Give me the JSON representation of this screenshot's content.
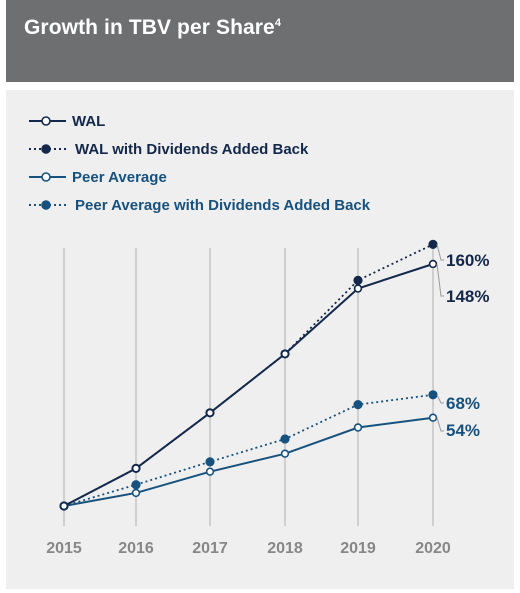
{
  "header": {
    "title": "Growth in TBV per Share",
    "footnote": "4"
  },
  "chart_data": {
    "type": "line",
    "title": "Growth in TBV per Share",
    "x": [
      "2015",
      "2016",
      "2017",
      "2018",
      "2019",
      "2020"
    ],
    "ylim": [
      0,
      170
    ],
    "grid": "vertical",
    "legend_position": "top-left",
    "series": [
      {
        "name": "WAL",
        "values": [
          0,
          23,
          57,
          93,
          133,
          148
        ],
        "style": "solid",
        "marker": "open",
        "color": "#13284a",
        "end_label": "148%"
      },
      {
        "name": "WAL with Dividends Added Back",
        "values": [
          0,
          23,
          57,
          93,
          138,
          160
        ],
        "style": "dotted",
        "marker": "filled",
        "color": "#13284a",
        "end_label": "160%"
      },
      {
        "name": "Peer Average",
        "values": [
          0,
          8,
          21,
          32,
          48,
          54
        ],
        "style": "solid",
        "marker": "open",
        "color": "#17527f",
        "end_label": "54%"
      },
      {
        "name": "Peer Average with Dividends Added Back",
        "values": [
          0,
          13,
          27,
          41,
          62,
          68
        ],
        "style": "dotted",
        "marker": "filled",
        "color": "#17527f",
        "end_label": "68%"
      }
    ],
    "colors": {
      "x_tick": "#878787",
      "grid": "#cfcfcf"
    }
  }
}
